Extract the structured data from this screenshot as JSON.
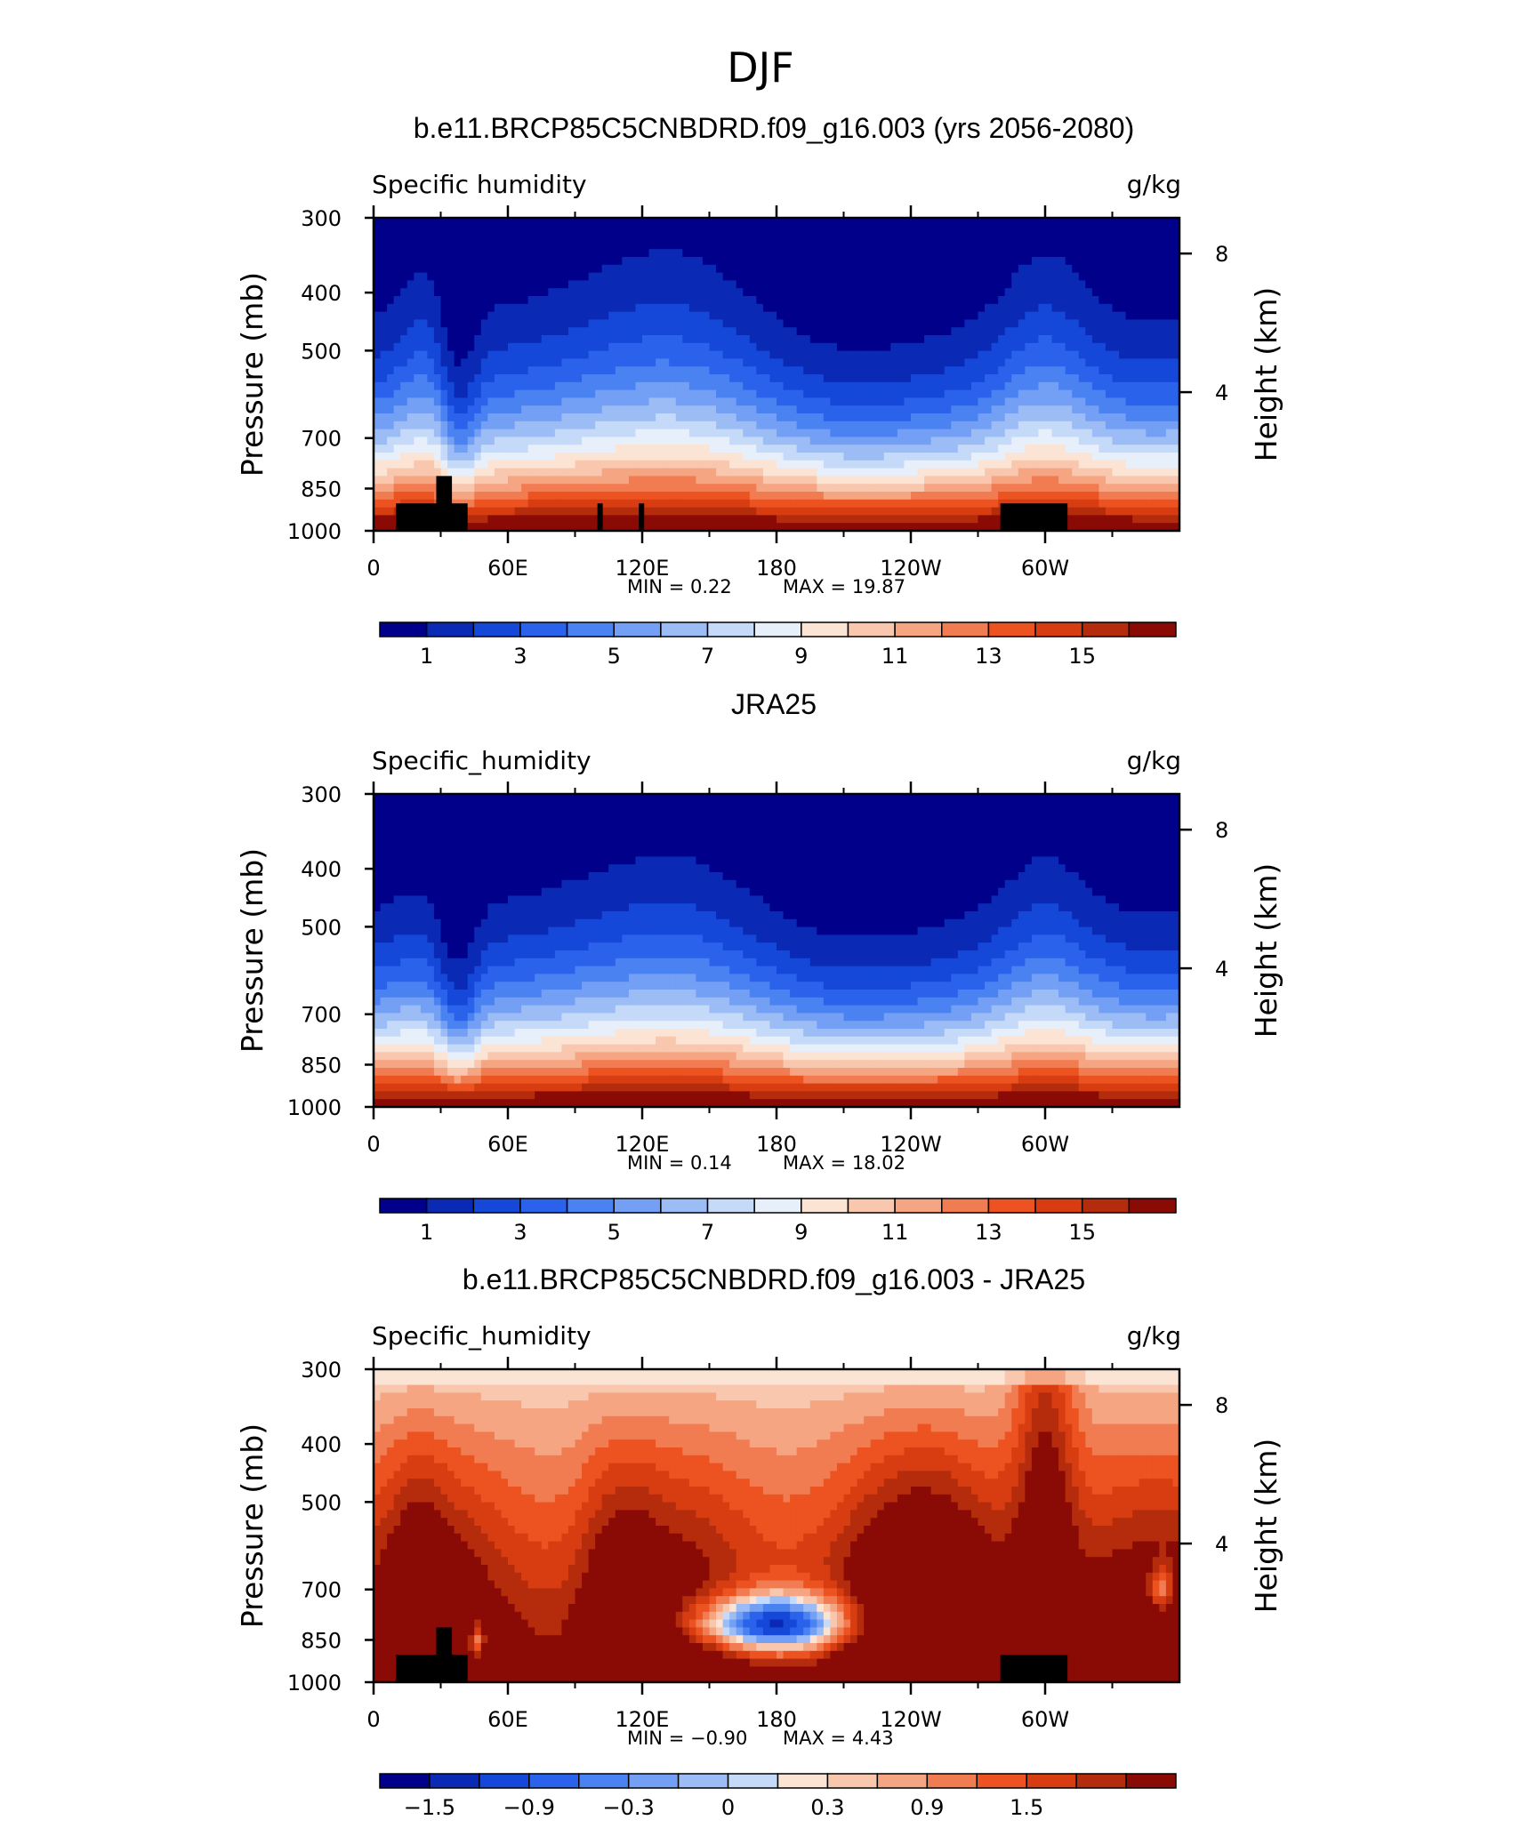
{
  "figure": {
    "title": "DJF"
  },
  "chart_data": [
    {
      "type": "heatmap",
      "title": "b.e11.BRCP85C5CNBDRD.f09_g16.003 (yrs 2056-2080)",
      "left_label": "Specific humidity",
      "right_label": "g/kg",
      "ylabel": "Pressure (mb)",
      "ylabel_right": "Height (km)",
      "x_ticks": [
        "0",
        "60E",
        "120E",
        "180",
        "120W",
        "60W"
      ],
      "y_ticks": [
        "300",
        "400",
        "500",
        "700",
        "850",
        "1000"
      ],
      "y_right_ticks": [
        "8",
        "4"
      ],
      "min_text": "MIN =    0.22",
      "max_text": "MAX =   19.87",
      "min": 0.22,
      "max": 19.87,
      "colorbar_labels": [
        "1",
        "3",
        "5",
        "7",
        "9",
        "11",
        "13",
        "15"
      ],
      "colors": [
        "#00008a",
        "#0a2ab5",
        "#1548d8",
        "#2a62ec",
        "#4a82f2",
        "#739ff4",
        "#9cbcf6",
        "#c5d9f8",
        "#e7effb",
        "#fbe4d4",
        "#f8c7ae",
        "#f6a583",
        "#f27c52",
        "#ec5320",
        "#d83d12",
        "#b52c0d",
        "#8a0b06"
      ],
      "terrain": "NH"
    },
    {
      "type": "heatmap",
      "title": "JRA25",
      "left_label": "Specific_humidity",
      "right_label": "g/kg",
      "ylabel": "Pressure (mb)",
      "ylabel_right": "Height (km)",
      "x_ticks": [
        "0",
        "60E",
        "120E",
        "180",
        "120W",
        "60W"
      ],
      "y_ticks": [
        "300",
        "400",
        "500",
        "700",
        "850",
        "1000"
      ],
      "y_right_ticks": [
        "8",
        "4"
      ],
      "min_text": "MIN =    0.14",
      "max_text": "MAX =   18.02",
      "min": 0.14,
      "max": 18.02,
      "colorbar_labels": [
        "1",
        "3",
        "5",
        "7",
        "9",
        "11",
        "13",
        "15"
      ],
      "colors": [
        "#00008a",
        "#0a2ab5",
        "#1548d8",
        "#2a62ec",
        "#4a82f2",
        "#739ff4",
        "#9cbcf6",
        "#c5d9f8",
        "#e7effb",
        "#fbe4d4",
        "#f8c7ae",
        "#f6a583",
        "#f27c52",
        "#ec5320",
        "#d83d12",
        "#b52c0d",
        "#8a0b06"
      ],
      "terrain": "none"
    },
    {
      "type": "heatmap",
      "title": "b.e11.BRCP85C5CNBDRD.f09_g16.003 - JRA25",
      "left_label": "Specific_humidity",
      "right_label": "g/kg",
      "ylabel": "Pressure (mb)",
      "ylabel_right": "Height (km)",
      "x_ticks": [
        "0",
        "60E",
        "120E",
        "180",
        "120W",
        "60W"
      ],
      "y_ticks": [
        "300",
        "400",
        "500",
        "700",
        "850",
        "1000"
      ],
      "y_right_ticks": [
        "8",
        "4"
      ],
      "min_text": "MIN =   −0.90",
      "max_text": "MAX =    4.43",
      "min": -0.9,
      "max": 4.43,
      "colorbar_labels": [
        "−1.5",
        "−0.9",
        "−0.3",
        "0",
        "0.3",
        "0.9",
        "1.5"
      ],
      "colors": [
        "#00008a",
        "#0a2ab5",
        "#1548d8",
        "#2a62ec",
        "#4a82f2",
        "#739ff4",
        "#9cbcf6",
        "#c5d9f8",
        "#fbe4d4",
        "#f8c7ae",
        "#f6a583",
        "#f27c52",
        "#ec5320",
        "#d83d12",
        "#b52c0d",
        "#8a0b06"
      ],
      "terrain": "DIFF"
    }
  ]
}
